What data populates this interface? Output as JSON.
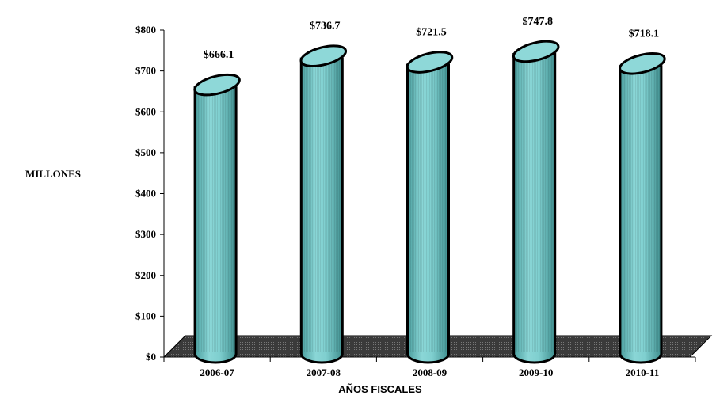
{
  "chart_data": {
    "type": "bar",
    "categories": [
      "2006-07",
      "2007-08",
      "2008-09",
      "2009-10",
      "2010-11"
    ],
    "values": [
      666.1,
      736.7,
      721.5,
      747.8,
      718.1
    ],
    "value_labels": [
      "$666.1",
      "$736.7",
      "$721.5",
      "$747.8",
      "$718.1"
    ],
    "title": "",
    "xlabel": "AÑOS FISCALES",
    "ylabel": "MILLONES",
    "ylim": [
      0,
      800
    ],
    "yticks": [
      0,
      100,
      200,
      300,
      400,
      500,
      600,
      700,
      800
    ],
    "ytick_labels": [
      "$0",
      "$100",
      "$200",
      "$300",
      "$400",
      "$500",
      "$600",
      "$700",
      "$800"
    ],
    "grid": false,
    "legend": "none",
    "colors": {
      "bar_fill": "#7fcfcf",
      "bar_shade": "#4a9e9e",
      "bar_top": "#8ed8d8",
      "bar_outline": "#000000",
      "floor": "#3a3a3a"
    }
  }
}
